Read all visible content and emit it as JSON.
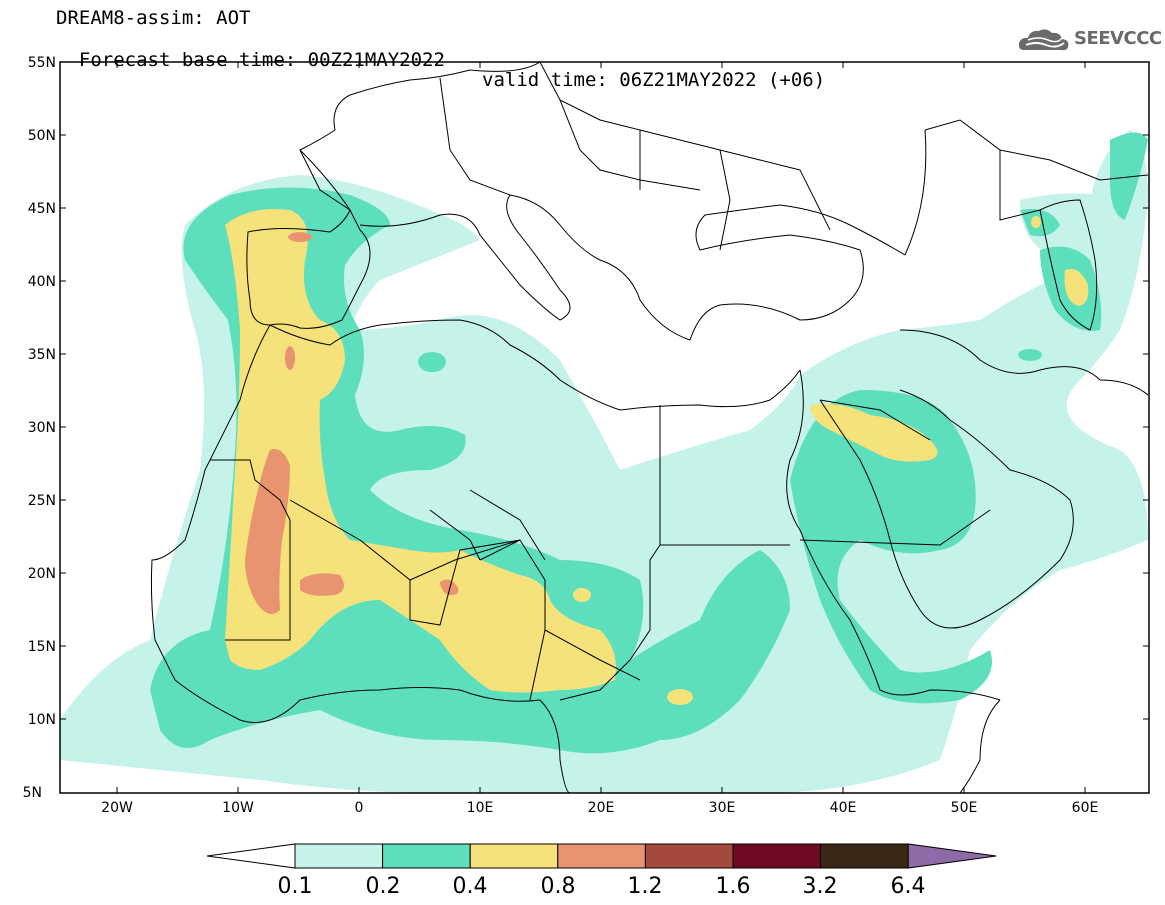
{
  "title": {
    "line1": "DREAM8-assim: AOT",
    "line2_base": "Forecast base time: 00Z21MAY2022",
    "line2_valid": "valid time: 06Z21MAY2022 (+06)"
  },
  "logo": {
    "text": "SEEVCCC",
    "icon": "cloud-logo-icon"
  },
  "map": {
    "lon_range": [
      -25,
      65
    ],
    "lat_range": [
      5,
      55
    ],
    "lat_ticks": [
      "55N",
      "50N",
      "45N",
      "40N",
      "35N",
      "30N",
      "25N",
      "20N",
      "15N",
      "10N",
      "5N"
    ],
    "lon_ticks": [
      "20W",
      "10W",
      "0",
      "10E",
      "20E",
      "30E",
      "40E",
      "50E",
      "60E"
    ],
    "field_classes": {
      "c1": "#c5f2e9",
      "c2": "#5ddfbd",
      "c3": "#f5e27a",
      "c4": "#e89470"
    }
  },
  "colorbar": {
    "labels": [
      "0.1",
      "0.2",
      "0.4",
      "0.8",
      "1.2",
      "1.6",
      "3.2",
      "6.4"
    ],
    "colors": [
      "#ffffff",
      "#c5f2e9",
      "#5ddfbd",
      "#f5e27a",
      "#e89470",
      "#a44a3c",
      "#6e0b23",
      "#3b2716",
      "#8e6aa6"
    ]
  }
}
